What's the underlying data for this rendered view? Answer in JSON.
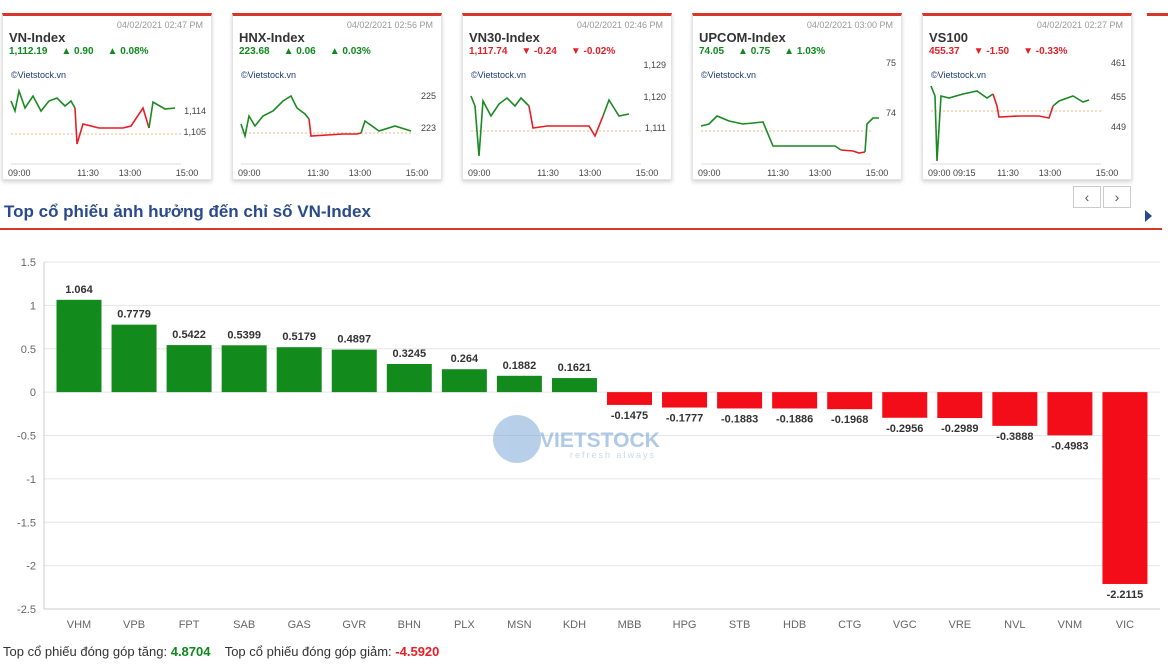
{
  "cards": [
    {
      "name": "VN-Index",
      "timestamp": "04/02/2021 02:47 PM",
      "value": "1,112.19",
      "change": "▲ 0.90",
      "pct": "▲ 0.08%",
      "dir": "up",
      "watermark": "©Vietstock.vn",
      "yticks": [
        "1,114",
        "1,105"
      ],
      "xticks": [
        "09:00",
        "11:30",
        "13:00",
        "15:00"
      ]
    },
    {
      "name": "HNX-Index",
      "timestamp": "04/02/2021 02:56 PM",
      "value": "223.68",
      "change": "▲ 0.06",
      "pct": "▲ 0.03%",
      "dir": "up",
      "watermark": "©Vietstock.vn",
      "yticks": [
        "225",
        "223"
      ],
      "xticks": [
        "09:00",
        "11:30",
        "13:00",
        "15:00"
      ]
    },
    {
      "name": "VN30-Index",
      "timestamp": "04/02/2021 02:46 PM",
      "value": "1,117.74",
      "change": "▼ -0.24",
      "pct": "▼ -0.02%",
      "dir": "down",
      "watermark": "©Vietstock.vn",
      "yticks": [
        "1,129",
        "1,120",
        "1,111"
      ],
      "xticks": [
        "09:00",
        "11:30",
        "13:00",
        "15:00"
      ]
    },
    {
      "name": "UPCOM-Index",
      "timestamp": "04/02/2021 03:00 PM",
      "value": "74.05",
      "change": "▲ 0.75",
      "pct": "▲ 1.03%",
      "dir": "up",
      "watermark": "©Vietstock.vn",
      "yticks": [
        "75",
        "74"
      ],
      "xticks": [
        "09:00",
        "11:30",
        "13:00",
        "15:00"
      ]
    },
    {
      "name": "VS100",
      "timestamp": "04/02/2021 02:27 PM",
      "value": "455.37",
      "change": "▼ -1.50",
      "pct": "▼ -0.33%",
      "dir": "down",
      "watermark": "©Vietstock.vn",
      "yticks": [
        "461",
        "455",
        "449"
      ],
      "xticks": [
        "09:00 09:15",
        "11:30",
        "13:00",
        "15:00"
      ]
    }
  ],
  "nav": {
    "prev": "‹",
    "next": "›"
  },
  "section_title": "Top cổ phiếu ảnh hưởng đến chỉ số VN-Index",
  "watermark_logo": {
    "main": "VIETSTOCK",
    "tag": "refresh always"
  },
  "chart_data": {
    "type": "bar",
    "categories": [
      "VHM",
      "VPB",
      "FPT",
      "SAB",
      "GAS",
      "GVR",
      "BHN",
      "PLX",
      "MSN",
      "KDH",
      "MBB",
      "HPG",
      "STB",
      "HDB",
      "CTG",
      "VGC",
      "VRE",
      "NVL",
      "VNM",
      "VIC"
    ],
    "values": [
      1.064,
      0.7779,
      0.5422,
      0.5399,
      0.5179,
      0.4897,
      0.3245,
      0.264,
      0.1882,
      0.1621,
      -0.1475,
      -0.1777,
      -0.1883,
      -0.1886,
      -0.1968,
      -0.2956,
      -0.2989,
      -0.3888,
      -0.4983,
      -2.2115
    ],
    "value_labels": [
      "1.064",
      "0.7779",
      "0.5422",
      "0.5399",
      "0.5179",
      "0.4897",
      "0.3245",
      "0.264",
      "0.1882",
      "0.1621",
      "-0.1475",
      "-0.1777",
      "-0.1883",
      "-0.1886",
      "-0.1968",
      "-0.2956",
      "-0.2989",
      "-0.3888",
      "-0.4983",
      "-2.2115"
    ],
    "ylim": [
      -2.5,
      1.5
    ],
    "yticks": [
      "1.5",
      "1",
      "0.5",
      "0",
      "-0.5",
      "-1",
      "-1.5",
      "-2",
      "-2.5"
    ],
    "ytick_values": [
      1.5,
      1,
      0.5,
      0,
      -0.5,
      -1,
      -1.5,
      -2,
      -2.5
    ],
    "grid": true,
    "colors": {
      "positive": "#138a1c",
      "negative": "#f20d18"
    }
  },
  "footer": {
    "up_label": "Top cổ phiếu đóng góp tăng:",
    "up_value": "4.8704",
    "down_label": "Top cổ phiếu đóng góp giảm:",
    "down_value": "-4.5920"
  }
}
